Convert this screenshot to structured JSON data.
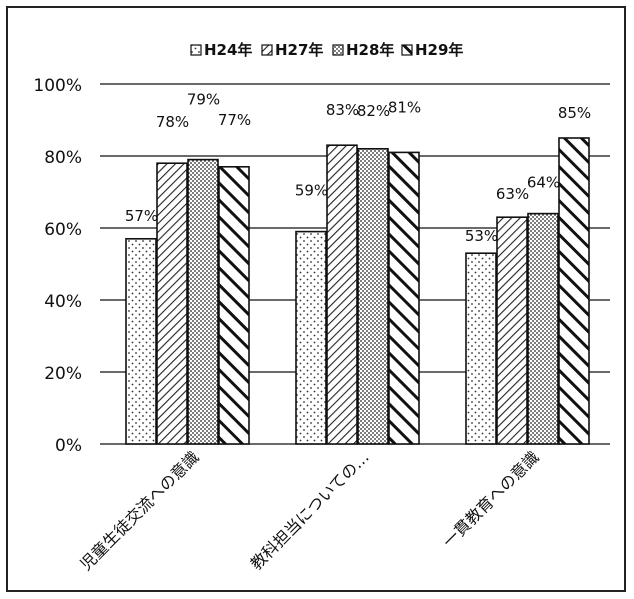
{
  "chart_data": {
    "type": "bar",
    "title": "",
    "xlabel": "",
    "ylabel": "",
    "categories": [
      "児童生徒交流への意識",
      "教科担当についての…",
      "一貫教育への意識"
    ],
    "series": [
      {
        "name": "H24年",
        "values": [
          57,
          59,
          53
        ],
        "pattern": "dots"
      },
      {
        "name": "H27年",
        "values": [
          78,
          83,
          63
        ],
        "pattern": "fine-diagonal"
      },
      {
        "name": "H28年",
        "values": [
          79,
          82,
          64
        ],
        "pattern": "dense-dots"
      },
      {
        "name": "H29年",
        "values": [
          77,
          81,
          85
        ],
        "pattern": "bold-diagonal"
      }
    ],
    "data_labels": [
      [
        "57%",
        "78%",
        "79%",
        "77%"
      ],
      [
        "59%",
        "83%",
        "82%",
        "81%"
      ],
      [
        "53%",
        "63%",
        "64%",
        "85%"
      ]
    ],
    "ylim": [
      0,
      100
    ],
    "yticks": [
      "0%",
      "20%",
      "40%",
      "60%",
      "80%",
      "100%"
    ],
    "grid": true,
    "legend_position": "top"
  }
}
